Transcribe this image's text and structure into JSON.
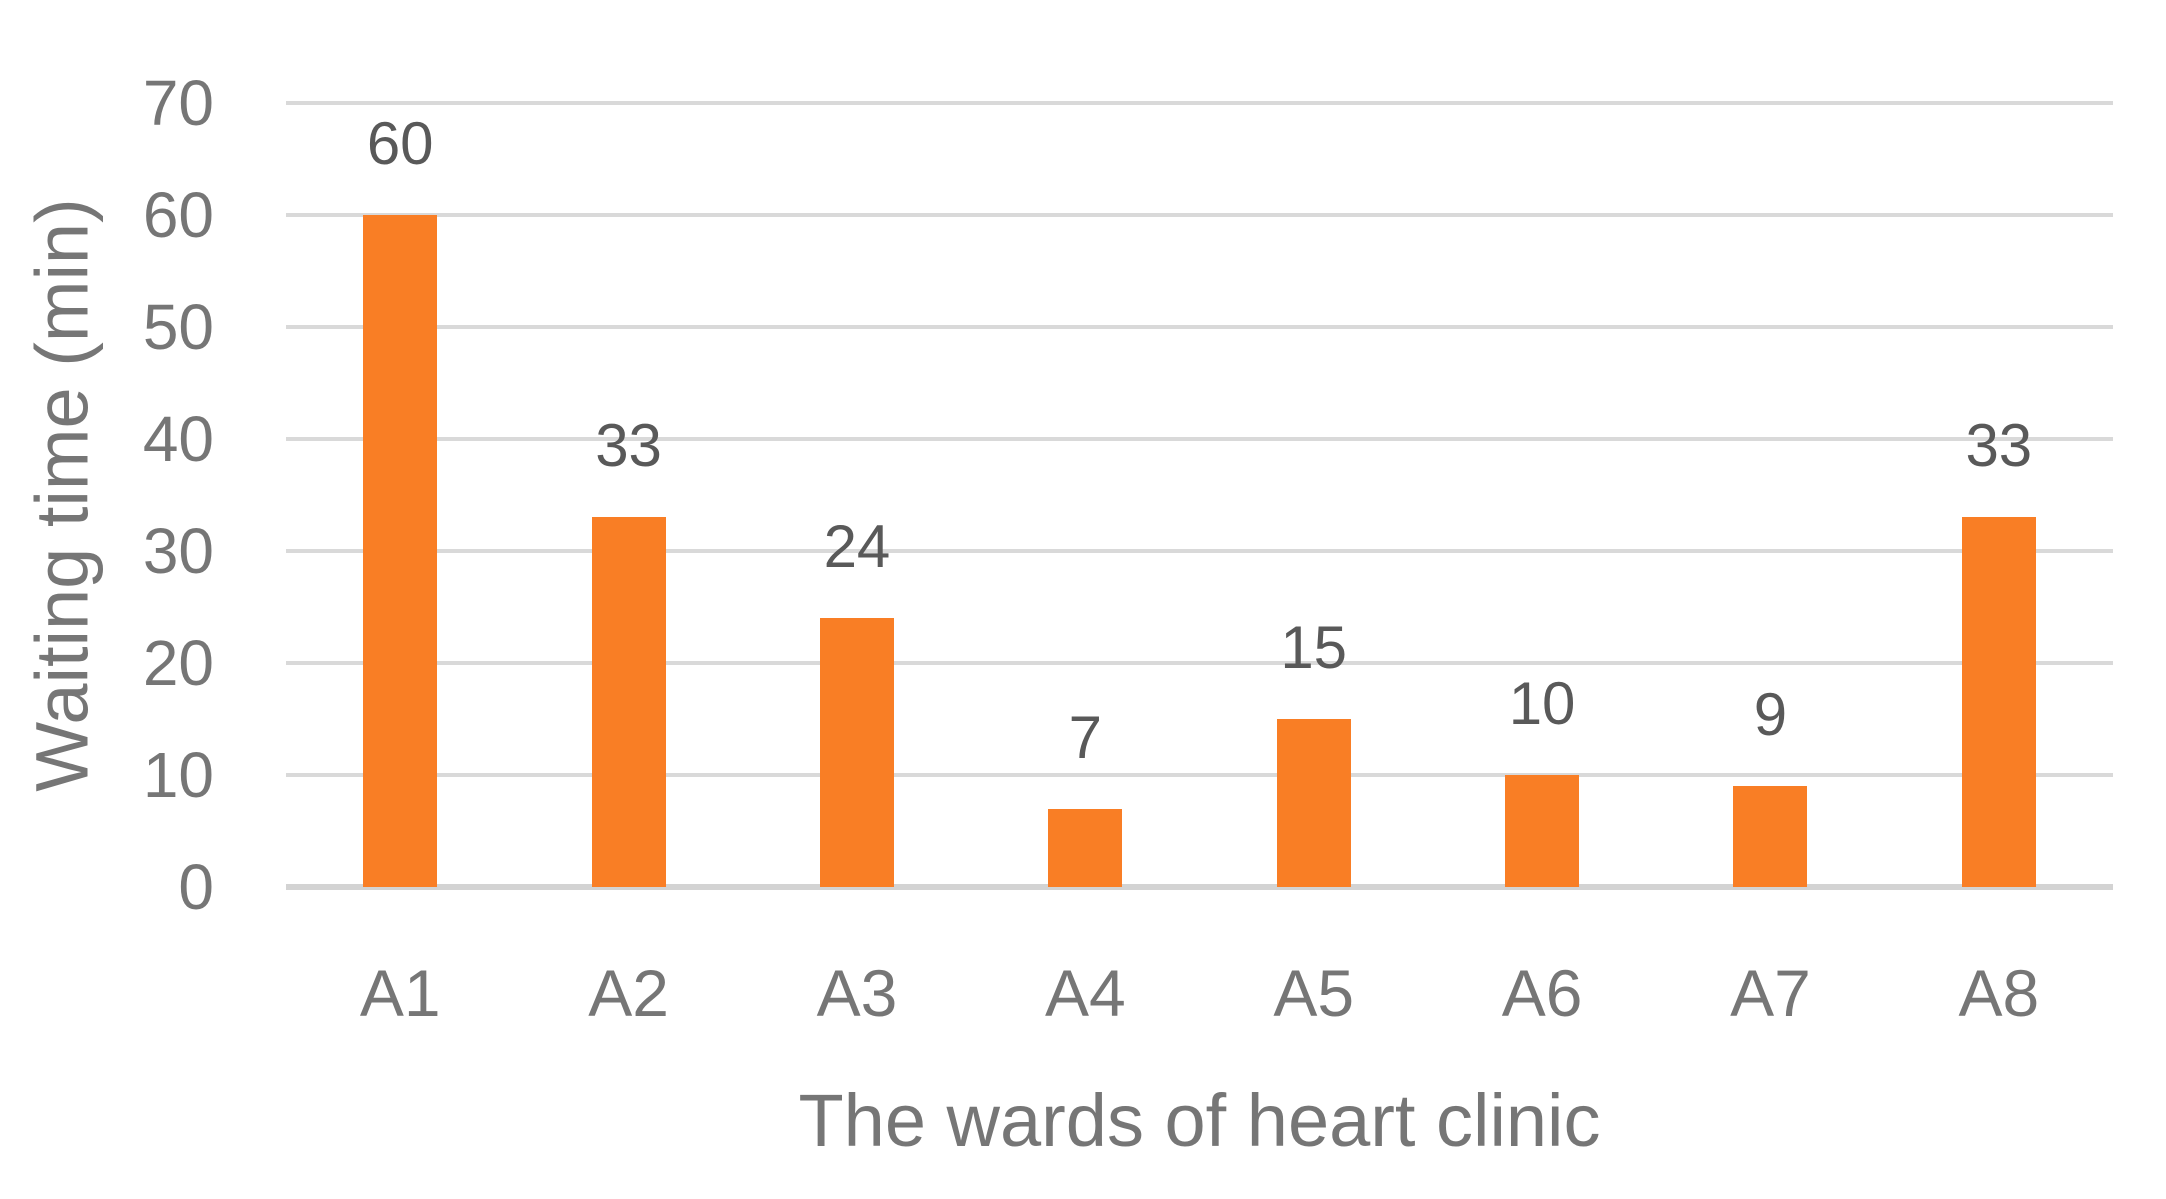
{
  "chart_data": {
    "type": "bar",
    "title": "",
    "categories": [
      "A1",
      "A2",
      "A3",
      "A4",
      "A5",
      "A6",
      "A7",
      "A8"
    ],
    "values": [
      60,
      33,
      24,
      7,
      15,
      10,
      9,
      33
    ],
    "data_labels": [
      "60",
      "33",
      "24",
      "7",
      "15",
      "10",
      "9",
      "33"
    ],
    "xlabel": "The wards of heart clinic",
    "ylabel": "Waiting time (min)",
    "ylim": [
      0,
      70
    ],
    "yticks": [
      0,
      10,
      20,
      30,
      40,
      50,
      60,
      70
    ],
    "grid": true,
    "legend": false,
    "colors": {
      "bar": "#F97E25",
      "gridline": "#D9D9D9",
      "baseline": "#D3D3D3",
      "axis_text": "#767676",
      "data_label": "#595959",
      "background": "#FFFFFF"
    }
  }
}
